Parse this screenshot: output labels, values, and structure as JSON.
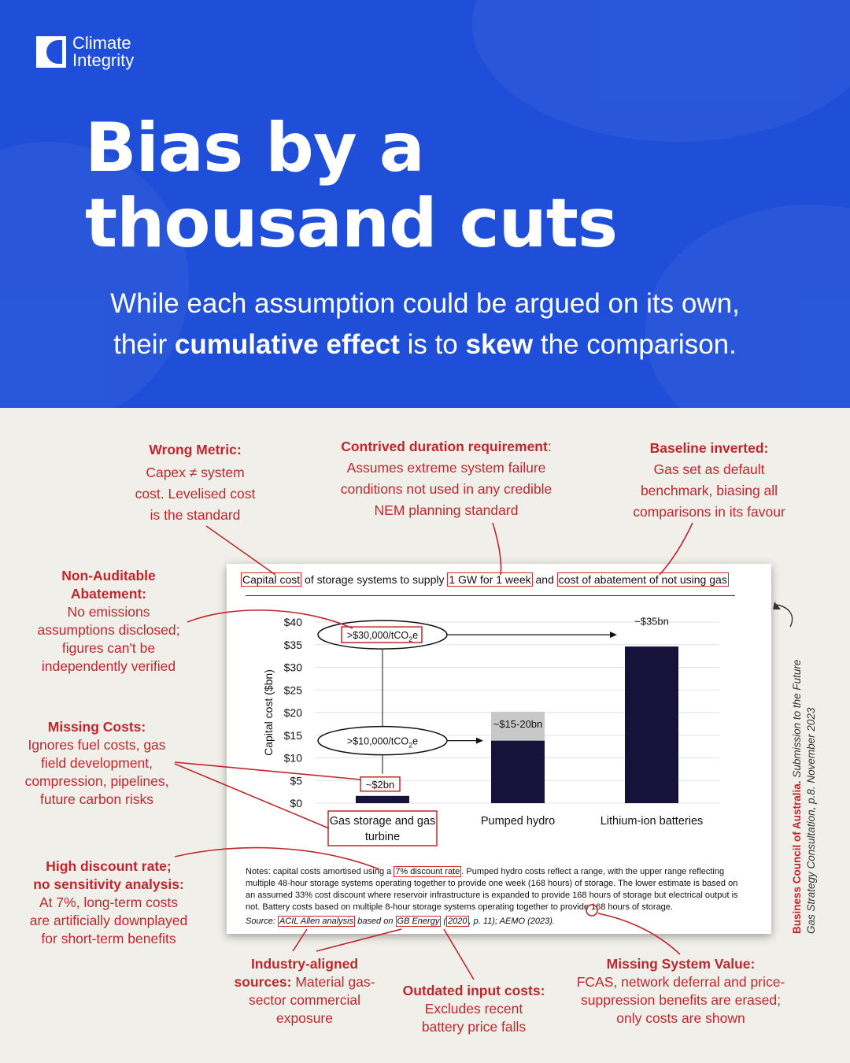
{
  "brand": {
    "line1": "Climate",
    "line2": "Integrity"
  },
  "hero": {
    "title_line1": "Bias by a",
    "title_line2": "thousand cuts",
    "subtitle_1": "While each assumption could be argued on its own,",
    "subtitle_2a": "their ",
    "subtitle_2b": "cumulative effect",
    "subtitle_2c": " is to ",
    "subtitle_2d": "skew",
    "subtitle_2e": " the comparison."
  },
  "annotations": {
    "wrong_metric": {
      "heading": "Wrong Metric:",
      "l1": "Capex ≠ system",
      "l2": "cost. Levelised cost",
      "l3": "is the standard"
    },
    "duration": {
      "heading": "Contrived duration requirement",
      "colon": ":",
      "l1": "Assumes extreme system failure",
      "l2": "conditions not used in any credible",
      "l3": "NEM planning standard"
    },
    "baseline": {
      "heading": "Baseline inverted:",
      "l1": "Gas set as default",
      "l2": "benchmark, biasing all",
      "l3": "comparisons in its favour"
    },
    "abatement": {
      "h1": "Non-Auditable",
      "h2": "Abatement:",
      "l1": "No emissions",
      "l2": "assumptions disclosed;",
      "l3": "figures can't be",
      "l4": "independently verified"
    },
    "missing_costs": {
      "heading": "Missing Costs:",
      "l1": "Ignores fuel costs, gas",
      "l2": "field development,",
      "l3": "compression, pipelines,",
      "l4": "future carbon risks"
    },
    "discount": {
      "h1": "High discount rate;",
      "h2": "no sensitivity analysis:",
      "l1": "At 7%, long-term costs",
      "l2": "are artificially downplayed",
      "l3": "for short-term benefits"
    },
    "industry": {
      "h1": "Industry-aligned",
      "h2": "sources:",
      "l1_rest": " Material gas-",
      "l2": "sector commercial",
      "l3": "exposure"
    },
    "outdated": {
      "heading": "Outdated input costs:",
      "l1": "Excludes recent",
      "l2": "battery price falls"
    },
    "system_value": {
      "heading": "Missing System Value:",
      "l1": "FCAS, network deferral and price-",
      "l2": "suppression benefits are erased;",
      "l3": "only costs are shown"
    }
  },
  "card": {
    "title_a": "Capital cost",
    "title_b": " of storage systems to supply ",
    "title_c": "1 GW for 1 week",
    "title_d": " and ",
    "title_e": "cost of abatement of not using gas",
    "notes_a": "Notes: capital costs amortised using a ",
    "notes_b": "7% discount rate",
    "notes_c": ". Pumped hydro costs reflect a range, with the upper range reflecting multiple 48-hour storage systems operating together to provide one week (168 hours) of storage. The lower estimate is based on an assumed 33% cost discount where reservoir infrastructure is expanded to provide 168 hours of storage but electrical output is not. Battery costs based on multiple 8-hour storage systems operating together to provide 168 hours of storage.",
    "source_a": "Source: ",
    "source_b": "ACIL Allen analysis",
    "source_c": " based on ",
    "source_d": "GB Energy",
    "source_e": " (",
    "source_f": "2020",
    "source_g": ", p. 11); AEMO (2023)."
  },
  "citation": {
    "org": "Business Council of Australia.",
    "title": "Submission to the Future",
    "line2": "Gas Strategy Consultation, p.8. November 2023"
  },
  "chart_data": {
    "type": "bar",
    "categories": [
      "Gas storage and gas turbine",
      "Pumped hydro",
      "Lithium-ion batteries"
    ],
    "category_lines": [
      [
        "Gas storage and gas",
        "turbine"
      ],
      [
        "Pumped hydro"
      ],
      [
        "Lithium-ion batteries"
      ]
    ],
    "values_low": [
      1.6,
      13.8,
      34.6
    ],
    "values_high": [
      1.6,
      20.2,
      34.6
    ],
    "ylabel": "Capital cost ($bn)",
    "yticks": [
      "$0",
      "$5",
      "$10",
      "$15",
      "$20",
      "$25",
      "$30",
      "$35",
      "$40"
    ],
    "ylim": [
      0,
      40
    ],
    "grid": true,
    "bar_color": "#16123a",
    "range_color": "#c8c8c8",
    "value_labels": [
      "~$2bn",
      "~$15-20bn",
      "~$35bn"
    ],
    "abatement_labels": [
      ">$10,000/tCO",
      ">$30,000/tCO"
    ],
    "abatement_sub": "2",
    "abatement_suffix": "e",
    "accent": "#c0272d"
  }
}
